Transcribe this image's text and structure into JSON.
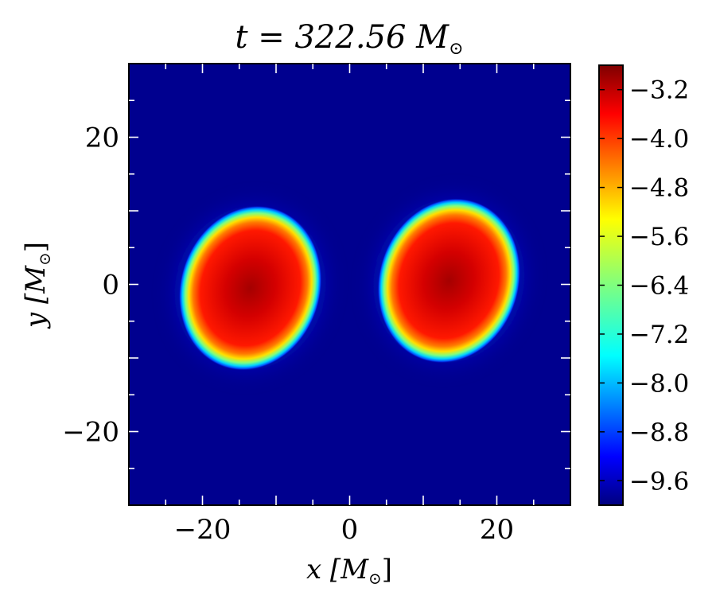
{
  "chart_data": {
    "type": "heatmap",
    "title": "t = 322.56 M",
    "title_unit_symbol": "⊙",
    "xlabel": "x [M",
    "ylabel": "y [M",
    "label_unit_symbol": "⊙",
    "xlim": [
      -30,
      30
    ],
    "ylim": [
      -30,
      30
    ],
    "x_ticks": [
      -20,
      0,
      20
    ],
    "y_ticks": [
      -20,
      0,
      20
    ],
    "x_tick_labels": [
      "−20",
      "0",
      "20"
    ],
    "y_tick_labels": [
      "−20",
      "0",
      "20"
    ],
    "colorbar": {
      "colormap": "jet",
      "range": [
        -10.0,
        -2.8
      ],
      "ticks": [
        -3.2,
        -4.0,
        -4.8,
        -5.6,
        -6.4,
        -7.2,
        -8.0,
        -8.8,
        -9.6
      ],
      "tick_labels": [
        "−3.2",
        "−4.0",
        "−4.8",
        "−5.6",
        "−6.4",
        "−7.2",
        "−8.0",
        "−8.8",
        "−9.6"
      ]
    },
    "background_value": -9.95,
    "blobs": [
      {
        "center": [
          -13.5,
          -0.5
        ],
        "semi_axis_x": 8.8,
        "semi_axis_y": 10.5,
        "tilt_deg": 18,
        "peak_value": -3.0
      },
      {
        "center": [
          13.5,
          0.5
        ],
        "semi_axis_x": 8.8,
        "semi_axis_y": 10.5,
        "tilt_deg": 18,
        "peak_value": -3.0
      }
    ],
    "grid": false,
    "legend": "none"
  }
}
